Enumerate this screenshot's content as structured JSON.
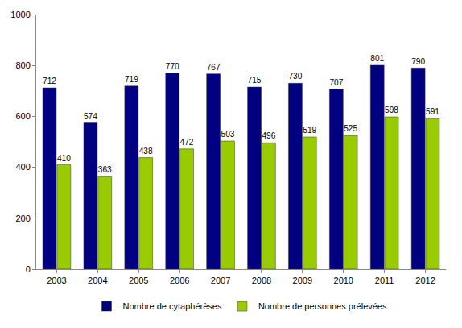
{
  "chart_data": {
    "type": "bar",
    "categories": [
      "2003",
      "2004",
      "2005",
      "2006",
      "2007",
      "2008",
      "2009",
      "2010",
      "2011",
      "2012"
    ],
    "series": [
      {
        "name": "Nombre de cytaphérèses",
        "color": "#000080",
        "values": [
          712,
          574,
          719,
          770,
          767,
          715,
          730,
          707,
          801,
          790
        ]
      },
      {
        "name": "Nombre de personnes prélevées",
        "color": "#99cc00",
        "values": [
          410,
          363,
          438,
          472,
          503,
          496,
          519,
          525,
          598,
          591
        ]
      }
    ],
    "ylim": [
      0,
      1000
    ],
    "yticks": [
      0,
      200,
      400,
      600,
      800,
      1000
    ],
    "grid": false,
    "legend": "bottom",
    "data_labels": true
  }
}
